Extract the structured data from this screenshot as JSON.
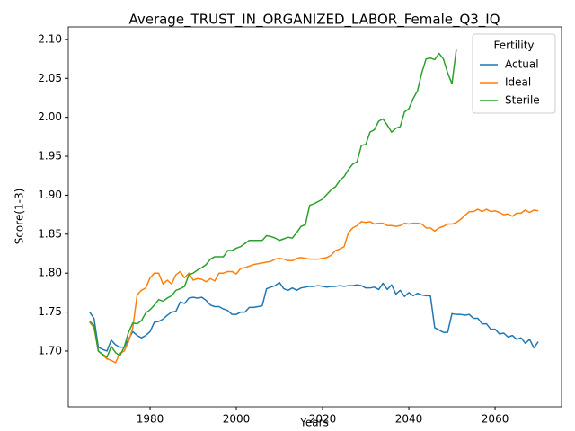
{
  "chart_data": {
    "type": "line",
    "title": "Average_TRUST_IN_ORGANIZED_LABOR_Female_Q3_IQ",
    "xlabel": "Years",
    "ylabel": "Score(1-3)",
    "legend_title": "Fertility",
    "legend": "upper right",
    "grid": false,
    "xlim": [
      1961.04,
      2075.4
    ],
    "ylim": [
      1.6285,
      2.116
    ],
    "xticks": [
      1980,
      2000,
      2020,
      2040,
      2060
    ],
    "yticks": [
      {
        "value": 1.7,
        "label": "1.70"
      },
      {
        "value": 1.75,
        "label": "1.75"
      },
      {
        "value": 1.8,
        "label": "1.80"
      },
      {
        "value": 1.85,
        "label": "1.85"
      },
      {
        "value": 1.9,
        "label": "1.90"
      },
      {
        "value": 1.95,
        "label": "1.95"
      },
      {
        "value": 2.0,
        "label": "2.00"
      },
      {
        "value": 2.05,
        "label": "2.05"
      },
      {
        "value": 2.1,
        "label": "2.10"
      }
    ],
    "x": [
      1966,
      1967,
      1968,
      1969,
      1970,
      1971,
      1972,
      1973,
      1974,
      1975,
      1976,
      1977,
      1978,
      1979,
      1980,
      1981,
      1982,
      1983,
      1984,
      1985,
      1986,
      1987,
      1988,
      1989,
      1990,
      1991,
      1992,
      1993,
      1994,
      1995,
      1996,
      1997,
      1998,
      1999,
      2000,
      2001,
      2002,
      2003,
      2004,
      2005,
      2006,
      2007,
      2008,
      2009,
      2010,
      2011,
      2012,
      2013,
      2014,
      2015,
      2016,
      2017,
      2018,
      2019,
      2020,
      2021,
      2022,
      2023,
      2024,
      2025,
      2026,
      2027,
      2028,
      2029,
      2030,
      2031,
      2032,
      2033,
      2034,
      2035,
      2036,
      2037,
      2038,
      2039,
      2040,
      2041,
      2042,
      2043,
      2044,
      2045,
      2046,
      2047,
      2048,
      2049,
      2050,
      2051,
      2052,
      2053,
      2054,
      2055,
      2056,
      2057,
      2058,
      2059,
      2060,
      2061,
      2062,
      2063,
      2064,
      2065,
      2066,
      2067,
      2068,
      2069,
      2070
    ],
    "series": [
      {
        "name": "Actual",
        "color": "#1f77b4",
        "values": [
          1.75,
          1.742,
          1.705,
          1.702,
          1.7,
          1.714,
          1.708,
          1.705,
          1.705,
          1.715,
          1.725,
          1.72,
          1.717,
          1.72,
          1.725,
          1.737,
          1.738,
          1.741,
          1.746,
          1.75,
          1.751,
          1.763,
          1.761,
          1.768,
          1.769,
          1.768,
          1.769,
          1.765,
          1.759,
          1.757,
          1.757,
          1.754,
          1.752,
          1.747,
          1.747,
          1.75,
          1.75,
          1.756,
          1.756,
          1.757,
          1.758,
          1.78,
          1.782,
          1.784,
          1.788,
          1.78,
          1.778,
          1.781,
          1.778,
          1.781,
          1.782,
          1.783,
          1.783,
          1.784,
          1.783,
          1.782,
          1.783,
          1.783,
          1.784,
          1.783,
          1.784,
          1.784,
          1.785,
          1.784,
          1.781,
          1.781,
          1.782,
          1.779,
          1.787,
          1.779,
          1.785,
          1.773,
          1.778,
          1.77,
          1.775,
          1.771,
          1.774,
          1.772,
          1.771,
          1.771,
          1.73,
          1.727,
          1.724,
          1.724,
          1.748,
          1.747,
          1.747,
          1.746,
          1.747,
          1.742,
          1.742,
          1.735,
          1.735,
          1.728,
          1.728,
          1.722,
          1.723,
          1.718,
          1.72,
          1.715,
          1.717,
          1.71,
          1.715,
          1.704,
          1.712
        ]
      },
      {
        "name": "Ideal",
        "color": "#ff7f0e",
        "values": [
          1.737,
          1.73,
          1.7,
          1.695,
          1.69,
          1.688,
          1.685,
          1.697,
          1.7,
          1.712,
          1.73,
          1.772,
          1.778,
          1.781,
          1.794,
          1.8,
          1.8,
          1.786,
          1.791,
          1.786,
          1.798,
          1.802,
          1.794,
          1.8,
          1.791,
          1.793,
          1.792,
          1.789,
          1.793,
          1.79,
          1.8,
          1.8,
          1.802,
          1.802,
          1.799,
          1.806,
          1.807,
          1.809,
          1.811,
          1.812,
          1.813,
          1.814,
          1.815,
          1.818,
          1.819,
          1.818,
          1.816,
          1.816,
          1.819,
          1.82,
          1.819,
          1.818,
          1.818,
          1.818,
          1.819,
          1.82,
          1.823,
          1.829,
          1.831,
          1.834,
          1.852,
          1.858,
          1.861,
          1.866,
          1.865,
          1.866,
          1.863,
          1.864,
          1.864,
          1.861,
          1.861,
          1.86,
          1.861,
          1.864,
          1.863,
          1.864,
          1.864,
          1.863,
          1.858,
          1.858,
          1.854,
          1.858,
          1.86,
          1.863,
          1.863,
          1.865,
          1.869,
          1.874,
          1.879,
          1.879,
          1.882,
          1.879,
          1.882,
          1.879,
          1.88,
          1.878,
          1.875,
          1.876,
          1.873,
          1.877,
          1.877,
          1.881,
          1.878,
          1.881,
          1.88
        ]
      },
      {
        "name": "Sterile",
        "color": "#2ca02c",
        "values": [
          1.738,
          1.733,
          1.7,
          1.696,
          1.692,
          1.706,
          1.698,
          1.694,
          1.705,
          1.724,
          1.736,
          1.735,
          1.739,
          1.749,
          1.753,
          1.759,
          1.766,
          1.764,
          1.768,
          1.771,
          1.778,
          1.78,
          1.783,
          1.798,
          1.8,
          1.804,
          1.807,
          1.811,
          1.818,
          1.821,
          1.821,
          1.821,
          1.829,
          1.829,
          1.832,
          1.834,
          1.838,
          1.842,
          1.842,
          1.842,
          1.842,
          1.848,
          1.847,
          1.845,
          1.842,
          1.844,
          1.846,
          1.845,
          1.852,
          1.86,
          1.862,
          1.887,
          1.889,
          1.892,
          1.895,
          1.901,
          1.907,
          1.911,
          1.919,
          1.924,
          1.933,
          1.94,
          1.943,
          1.964,
          1.965,
          1.981,
          1.984,
          1.995,
          1.998,
          1.99,
          1.981,
          1.986,
          1.988,
          2.007,
          2.011,
          2.024,
          2.034,
          2.057,
          2.075,
          2.076,
          2.074,
          2.082,
          2.075,
          2.057,
          2.043,
          2.087,
          null,
          null,
          null,
          null,
          null,
          null,
          null,
          null,
          null,
          null,
          null,
          null,
          null,
          null,
          null,
          null,
          null,
          null,
          null
        ]
      }
    ]
  }
}
